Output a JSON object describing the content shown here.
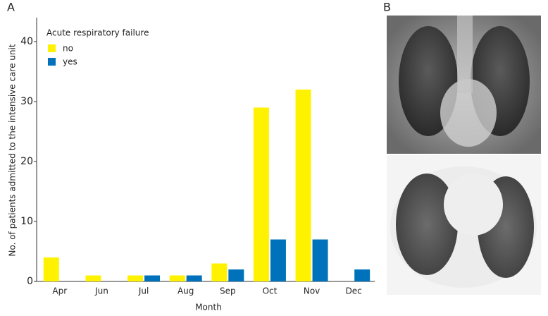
{
  "chart_data": {
    "type": "bar",
    "panel_labels": [
      "A",
      "B"
    ],
    "ylabel": "No. of patients admitted to the intensive care unit",
    "xlabel": "Month",
    "legend_title": "Acute respiratory failure",
    "categories": [
      "Apr",
      "Jun",
      "Jul",
      "Aug",
      "Sep",
      "Oct",
      "Nov",
      "Dec"
    ],
    "series": [
      {
        "name": "no",
        "color": "#fff200",
        "values": [
          4,
          1,
          1,
          1,
          3,
          29,
          32,
          0
        ]
      },
      {
        "name": "yes",
        "color": "#0072bc",
        "values": [
          0,
          0,
          1,
          1,
          2,
          7,
          7,
          2
        ]
      }
    ],
    "ylim": [
      0,
      44
    ],
    "yticks": [
      0,
      10,
      20,
      30,
      40
    ],
    "grid": false,
    "legend": "upper left"
  }
}
